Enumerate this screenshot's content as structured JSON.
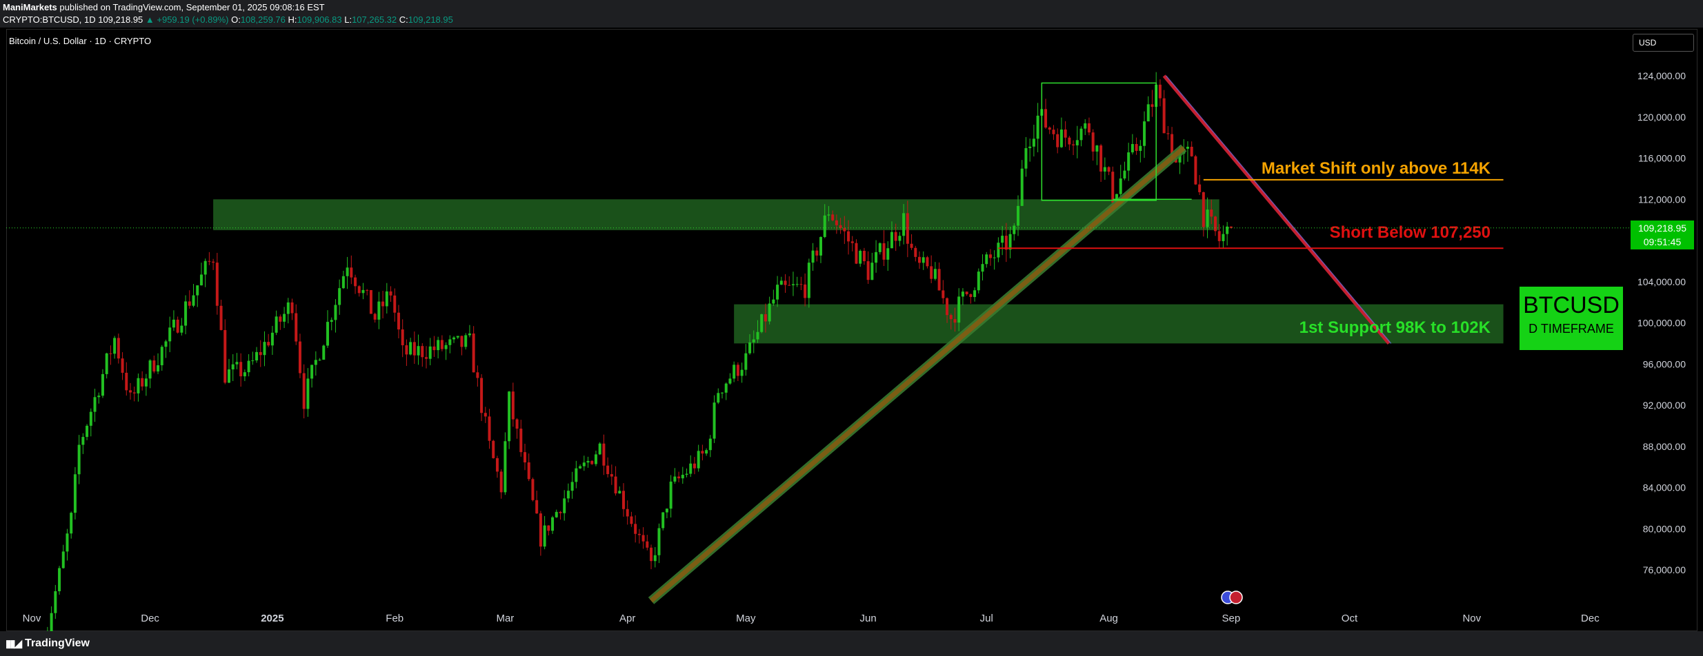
{
  "header": {
    "author": "ManiMarkets",
    "published": "published on TradingView.com, September 01, 2025 09:08:16 EST",
    "symbol_line": "CRYPTO:BTCUSD, 1D 109,218.95",
    "change": "▲ +959.19 (+0.89%)",
    "open_label": "O:",
    "open": "108,259.76",
    "high_label": "H:",
    "high": "109,906.83",
    "low_label": "L:",
    "low": "107,265.32",
    "close_label": "C:",
    "close": "109,218.95"
  },
  "chart_title": "Bitcoin / U.S. Dollar · 1D · CRYPTO",
  "currency_button": "USD",
  "price_tag": {
    "price": "109,218.95",
    "countdown": "09:51:45"
  },
  "badge": {
    "symbol": "BTCUSD",
    "timeframe": "D TIMEFRAME"
  },
  "footer": {
    "brand": "TradingView"
  },
  "colors": {
    "bull": "#22c022",
    "bear": "#c41818",
    "zone": "#1f5f1f",
    "orange": "#f5a300",
    "red": "#e01010",
    "green_text": "#28e028"
  },
  "chart_data": {
    "type": "candlestick",
    "title": "Bitcoin / U.S. Dollar · 1D · CRYPTO",
    "x_ticks": [
      "Nov",
      "Dec",
      "2025",
      "Feb",
      "Mar",
      "Apr",
      "May",
      "Jun",
      "Jul",
      "Aug",
      "Sep",
      "Oct",
      "Nov",
      "Dec"
    ],
    "x_tick_dates": [
      "2024-11-01",
      "2024-12-01",
      "2025-01-01",
      "2025-02-01",
      "2025-03-01",
      "2025-04-01",
      "2025-05-01",
      "2025-06-01",
      "2025-07-01",
      "2025-08-01",
      "2025-09-01",
      "2025-10-01",
      "2025-11-01",
      "2025-12-01"
    ],
    "y_ticks": [
      "124,000.00",
      "120,000.00",
      "116,000.00",
      "112,000.00",
      "108,000.00",
      "104,000.00",
      "100,000.00",
      "96,000.00",
      "92,000.00",
      "88,000.00",
      "84,000.00",
      "80,000.00",
      "76,000.00"
    ],
    "y_tick_values": [
      124000,
      120000,
      116000,
      112000,
      108000,
      104000,
      100000,
      96000,
      92000,
      88000,
      84000,
      80000,
      76000
    ],
    "ylim": [
      71000,
      127000
    ],
    "last_price": 109218.95,
    "anchors": [
      [
        "2024-11-04",
        68500
      ],
      [
        "2024-11-11",
        81000
      ],
      [
        "2024-11-13",
        88000
      ],
      [
        "2024-11-22",
        98500
      ],
      [
        "2024-11-26",
        92500
      ],
      [
        "2024-12-05",
        98000
      ],
      [
        "2024-12-17",
        106500
      ],
      [
        "2024-12-20",
        95000
      ],
      [
        "2024-12-26",
        95500
      ],
      [
        "2025-01-06",
        102000
      ],
      [
        "2025-01-09",
        92500
      ],
      [
        "2025-01-20",
        106000
      ],
      [
        "2025-01-27",
        100500
      ],
      [
        "2025-01-31",
        103000
      ],
      [
        "2025-02-03",
        97000
      ],
      [
        "2025-02-20",
        98000
      ],
      [
        "2025-02-25",
        88000
      ],
      [
        "2025-02-28",
        84000
      ],
      [
        "2025-03-02",
        92500
      ],
      [
        "2025-03-10",
        79000
      ],
      [
        "2025-03-19",
        85000
      ],
      [
        "2025-03-25",
        88000
      ],
      [
        "2025-03-31",
        82500
      ],
      [
        "2025-04-07",
        76500
      ],
      [
        "2025-04-12",
        84000
      ],
      [
        "2025-04-21",
        87500
      ],
      [
        "2025-04-24",
        93500
      ],
      [
        "2025-05-01",
        96500
      ],
      [
        "2025-05-09",
        103000
      ],
      [
        "2025-05-16",
        103500
      ],
      [
        "2025-05-22",
        111000
      ],
      [
        "2025-06-01",
        105000
      ],
      [
        "2025-06-10",
        110000
      ],
      [
        "2025-06-13",
        105500
      ],
      [
        "2025-06-17",
        105000
      ],
      [
        "2025-06-22",
        100500
      ],
      [
        "2025-07-01",
        105800
      ],
      [
        "2025-07-08",
        108500
      ],
      [
        "2025-07-11",
        117500
      ],
      [
        "2025-07-14",
        120000
      ],
      [
        "2025-07-20",
        118000
      ],
      [
        "2025-07-27",
        119000
      ],
      [
        "2025-08-02",
        112500
      ],
      [
        "2025-08-08",
        117000
      ],
      [
        "2025-08-13",
        122500
      ],
      [
        "2025-08-18",
        115500
      ],
      [
        "2025-08-22",
        116500
      ],
      [
        "2025-08-25",
        110500
      ],
      [
        "2025-08-29",
        108000
      ],
      [
        "2025-09-01",
        109218.95
      ]
    ],
    "annotations": [
      {
        "type": "zone",
        "x0": "2024-12-17",
        "x1": "2025-08-29",
        "y0": 109000,
        "y1": 112000
      },
      {
        "type": "zone",
        "x0": "2025-04-28",
        "x1": "2025-11-09",
        "y0": 98000,
        "y1": 101800
      },
      {
        "type": "trendline",
        "label": "",
        "from": [
          "2025-04-07",
          73000
        ],
        "to": [
          "2025-08-20",
          117000
        ]
      },
      {
        "type": "trendline",
        "label": "",
        "from": [
          "2025-08-15",
          124000
        ],
        "to": [
          "2025-10-11",
          98000
        ]
      },
      {
        "type": "hline",
        "label": "Market Shift only above 114K",
        "y": 113900,
        "x0": "2025-08-25",
        "x1": "2025-11-09"
      },
      {
        "type": "hline",
        "label": "Short Below 107,250",
        "y": 107250,
        "x0": "2025-07-04",
        "x1": "2025-11-09"
      },
      {
        "type": "text",
        "label": "1st Support 98K to 102K"
      },
      {
        "type": "box",
        "x0": "2025-07-15",
        "x1": "2025-08-13",
        "y0": 111900,
        "y1": 123300
      }
    ]
  }
}
